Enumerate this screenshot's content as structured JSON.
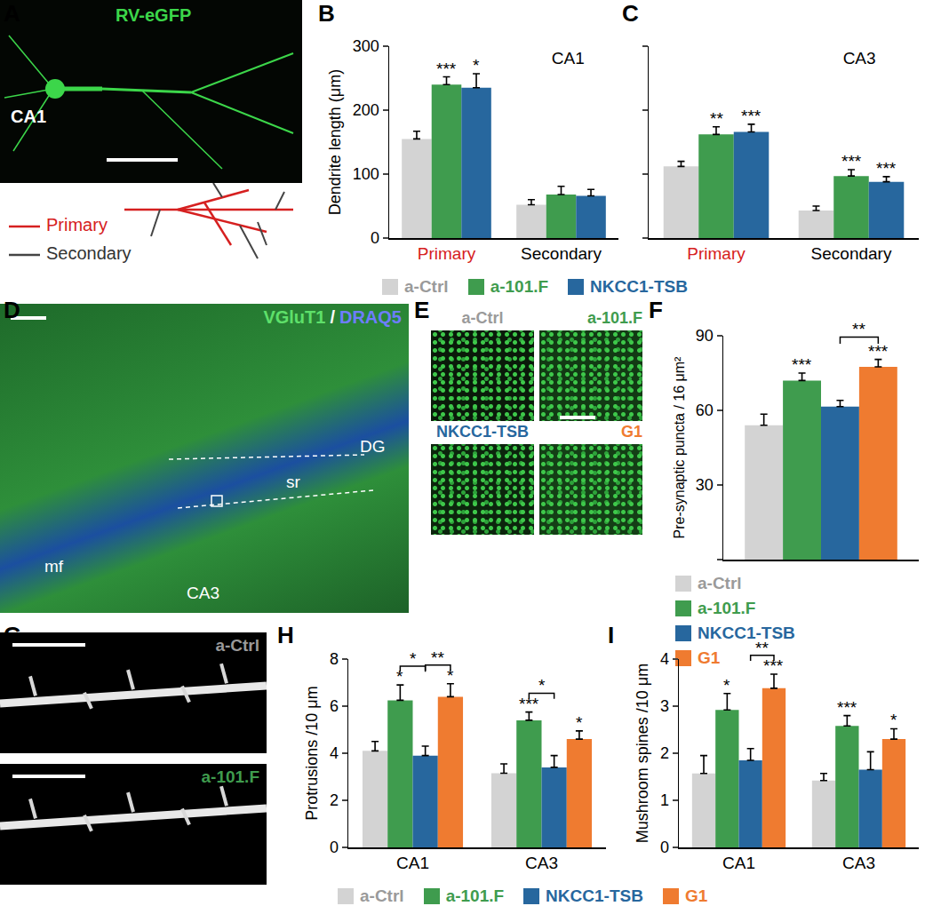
{
  "chart_data": [
    {
      "panel": "B",
      "type": "bar",
      "title": "CA1",
      "y_label": "Dendrite length (μm)",
      "categories": [
        "Primary",
        "Secondary"
      ],
      "ylim": [
        0,
        300
      ],
      "yticks": [
        0,
        100,
        200,
        300
      ],
      "series": [
        {
          "name": "a-Ctrl",
          "color": "#d3d3d3",
          "values": [
            155,
            52
          ],
          "errors": [
            12,
            8
          ],
          "stars": [
            null,
            null
          ]
        },
        {
          "name": "a-101.F",
          "color": "#3f9c4e",
          "values": [
            240,
            68
          ],
          "errors": [
            12,
            13
          ],
          "stars": [
            "***",
            null
          ]
        },
        {
          "name": "NKCC1-TSB",
          "color": "#27679e",
          "values": [
            235,
            66
          ],
          "errors": [
            22,
            10
          ],
          "stars": [
            "*",
            null
          ]
        }
      ]
    },
    {
      "panel": "C",
      "type": "bar",
      "title": "CA3",
      "tick_labels": "x",
      "legend": "bottom",
      "categories": [
        "Primary",
        "Secondary"
      ],
      "ylim": [
        0,
        300
      ],
      "yticks": [
        0,
        100,
        200,
        300
      ],
      "series": [
        {
          "name": "a-Ctrl",
          "color": "#d3d3d3",
          "values": [
            112,
            43
          ],
          "errors": [
            8,
            7
          ],
          "stars": [
            null,
            null
          ]
        },
        {
          "name": "a-101.F",
          "color": "#3f9c4e",
          "values": [
            162,
            97
          ],
          "errors": [
            12,
            10
          ],
          "stars": [
            "**",
            "***"
          ]
        },
        {
          "name": "NKCC1-TSB",
          "color": "#27679e",
          "values": [
            166,
            88
          ],
          "errors": [
            12,
            8
          ],
          "stars": [
            "***",
            "***"
          ]
        }
      ]
    },
    {
      "panel": "F",
      "type": "bar",
      "y_label": "Pre-synaptic puncta / 16 μm²",
      "tick_labels": "y",
      "legend": "bottom",
      "categories": [
        null
      ],
      "ylim": [
        0,
        90
      ],
      "yticks": [
        0,
        30,
        60,
        90
      ],
      "series": [
        {
          "name": "a-Ctrl",
          "color": "#d3d3d3",
          "values": [
            54
          ],
          "errors": [
            4.5
          ],
          "stars": [
            null
          ]
        },
        {
          "name": "a-101.F",
          "color": "#3f9c4e",
          "values": [
            72
          ],
          "errors": [
            3
          ],
          "stars": [
            "***"
          ]
        },
        {
          "name": "NKCC1-TSB",
          "color": "#27679e",
          "values": [
            61.5
          ],
          "errors": [
            2.5
          ],
          "stars": [
            null
          ]
        },
        {
          "name": "G1",
          "color": "#ef7b30",
          "values": [
            77.5
          ],
          "errors": [
            3
          ],
          "stars": [
            "***"
          ]
        }
      ],
      "brackets": [
        {
          "category": 0,
          "from": 2,
          "to": 3,
          "text": "**"
        }
      ]
    },
    {
      "panel": "H",
      "type": "bar",
      "y_label": "Protrusions /10 μm",
      "categories": [
        "CA1",
        "CA3"
      ],
      "ylim": [
        0,
        8
      ],
      "yticks": [
        0,
        2,
        4,
        6,
        8
      ],
      "series": [
        {
          "name": "a-Ctrl",
          "color": "#d3d3d3",
          "values": [
            4.1,
            3.15
          ],
          "errors": [
            0.4,
            0.4
          ],
          "stars": [
            null,
            null
          ]
        },
        {
          "name": "a-101.F",
          "color": "#3f9c4e",
          "values": [
            6.25,
            5.4
          ],
          "errors": [
            0.65,
            0.35
          ],
          "stars": [
            "*",
            "***"
          ]
        },
        {
          "name": "NKCC1-TSB",
          "color": "#27679e",
          "values": [
            3.9,
            3.4
          ],
          "errors": [
            0.4,
            0.5
          ],
          "stars": [
            null,
            null
          ]
        },
        {
          "name": "G1",
          "color": "#ef7b30",
          "values": [
            6.4,
            4.6
          ],
          "errors": [
            0.55,
            0.35
          ],
          "stars": [
            "*",
            "*"
          ]
        }
      ],
      "brackets": [
        {
          "category": 0,
          "from": 1,
          "to": 2,
          "text": "*"
        },
        {
          "category": 0,
          "from": 2,
          "to": 3,
          "text": "**"
        },
        {
          "category": 1,
          "from": 1,
          "to": 2,
          "text": "*"
        }
      ]
    },
    {
      "panel": "I",
      "type": "bar",
      "y_label": "Mushroom spines /10 μm",
      "legend": "bottom",
      "categories": [
        "CA1",
        "CA3"
      ],
      "ylim": [
        0,
        4
      ],
      "yticks": [
        0,
        1,
        2,
        3,
        4
      ],
      "series": [
        {
          "name": "a-Ctrl",
          "color": "#d3d3d3",
          "values": [
            1.57,
            1.42
          ],
          "errors": [
            0.38,
            0.15
          ],
          "stars": [
            null,
            null
          ]
        },
        {
          "name": "a-101.F",
          "color": "#3f9c4e",
          "values": [
            2.92,
            2.58
          ],
          "errors": [
            0.35,
            0.22
          ],
          "stars": [
            "*",
            "***"
          ]
        },
        {
          "name": "NKCC1-TSB",
          "color": "#27679e",
          "values": [
            1.85,
            1.65
          ],
          "errors": [
            0.25,
            0.38
          ],
          "stars": [
            null,
            null
          ]
        },
        {
          "name": "G1",
          "color": "#ef7b30",
          "values": [
            3.38,
            2.3
          ],
          "errors": [
            0.3,
            0.22
          ],
          "stars": [
            "***",
            "*"
          ]
        }
      ],
      "brackets": [
        {
          "category": 0,
          "from": 2,
          "to": 3,
          "text": "**"
        }
      ]
    }
  ],
  "image_panels": [
    {
      "panel": "A",
      "texts": [
        "RV-eGFP",
        "CA1"
      ],
      "trace_labels": [
        "Primary",
        "Secondary"
      ]
    },
    {
      "panel": "D",
      "texts": [
        "VGluT1",
        "/",
        "DRAQ5",
        "DG",
        "sr",
        "mf",
        "CA3"
      ]
    },
    {
      "panel": "E",
      "tile_labels": [
        "a-Ctrl",
        "a-101.F",
        "NKCC1-TSB",
        "G1"
      ]
    },
    {
      "panel": "G",
      "tile_labels": [
        "a-Ctrl",
        "a-101.F"
      ]
    }
  ]
}
